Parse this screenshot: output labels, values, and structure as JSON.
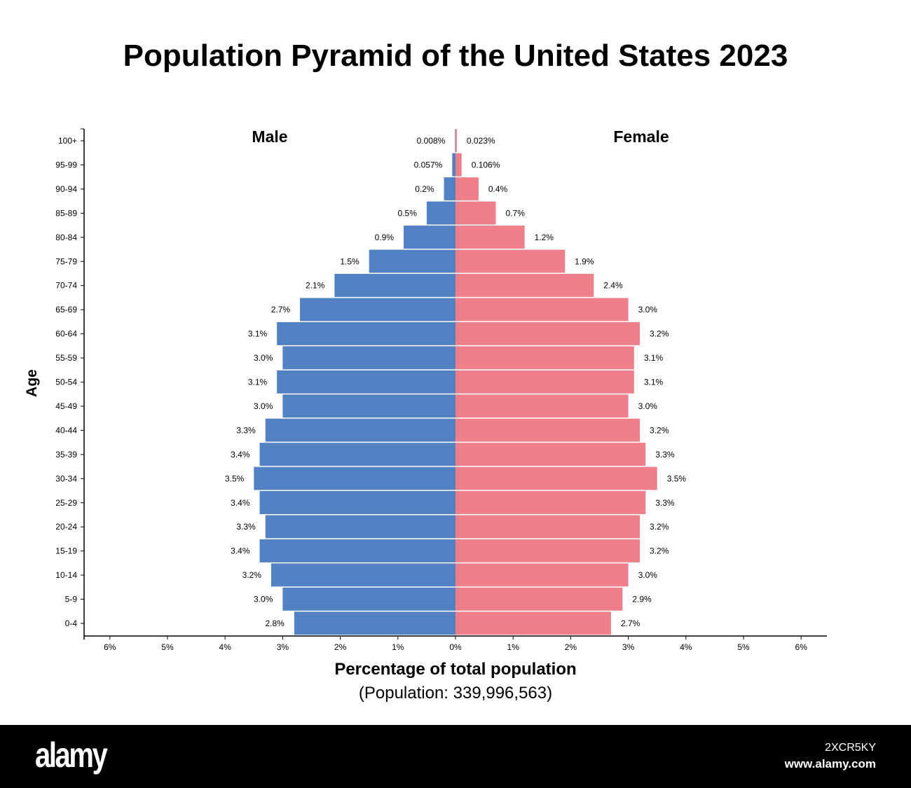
{
  "chart_data": {
    "type": "bar",
    "orientation": "horizontal-pyramid",
    "title": "Population Pyramid of the United States 2023",
    "xlabel": "Percentage of total population",
    "subtitle": "(Population: 339,996,563)",
    "ylabel": "Age",
    "xlim": [
      -6,
      6
    ],
    "xticks": [
      "6%",
      "5%",
      "4%",
      "3%",
      "2%",
      "1%",
      "0%",
      "1%",
      "2%",
      "3%",
      "4%",
      "5%",
      "6%"
    ],
    "grid": false,
    "categories": [
      "0-4",
      "5-9",
      "10-14",
      "15-19",
      "20-24",
      "25-29",
      "30-34",
      "35-39",
      "40-44",
      "45-49",
      "50-54",
      "55-59",
      "60-64",
      "65-69",
      "70-74",
      "75-79",
      "80-84",
      "85-89",
      "90-94",
      "95-99",
      "100+"
    ],
    "series": [
      {
        "name": "Male",
        "color": "#5282c3",
        "side": "left",
        "values": [
          2.8,
          3.0,
          3.2,
          3.4,
          3.3,
          3.4,
          3.5,
          3.4,
          3.3,
          3.0,
          3.1,
          3.0,
          3.1,
          2.7,
          2.1,
          1.5,
          0.9,
          0.5,
          0.2,
          0.057,
          0.008
        ],
        "labels": [
          "2.8%",
          "3.0%",
          "3.2%",
          "3.4%",
          "3.3%",
          "3.4%",
          "3.5%",
          "3.4%",
          "3.3%",
          "3.0%",
          "3.1%",
          "3.0%",
          "3.1%",
          "2.7%",
          "2.1%",
          "1.5%",
          "0.9%",
          "0.5%",
          "0.2%",
          "0.057%",
          "0.008%"
        ]
      },
      {
        "name": "Female",
        "color": "#f07f8c",
        "side": "right",
        "values": [
          2.7,
          2.9,
          3.0,
          3.2,
          3.2,
          3.3,
          3.5,
          3.3,
          3.2,
          3.0,
          3.1,
          3.1,
          3.2,
          3.0,
          2.4,
          1.9,
          1.2,
          0.7,
          0.4,
          0.106,
          0.023
        ],
        "labels": [
          "2.7%",
          "2.9%",
          "3.0%",
          "3.2%",
          "3.2%",
          "3.3%",
          "3.5%",
          "3.3%",
          "3.2%",
          "3.0%",
          "3.1%",
          "3.1%",
          "3.2%",
          "3.0%",
          "2.4%",
          "1.9%",
          "1.2%",
          "0.7%",
          "0.4%",
          "0.106%",
          "0.023%"
        ]
      }
    ]
  },
  "watermark": {
    "logo": "alamy",
    "image_id": "2XCR5KY",
    "site": "www.alamy.com"
  }
}
